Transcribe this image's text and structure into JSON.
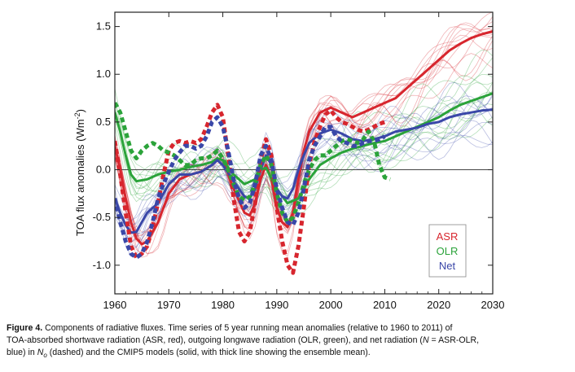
{
  "chart_data": {
    "type": "line",
    "title": "",
    "xlabel": "",
    "ylabel": "TOA flux anomalies (Wm",
    "ylabel_sup": "-2",
    "ylabel_close": ")",
    "xlim": [
      1960,
      2030
    ],
    "ylim": [
      -1.3,
      1.65
    ],
    "x_ticks": [
      1960,
      1970,
      1980,
      1990,
      2000,
      2010,
      2020,
      2030
    ],
    "x_tick_labels": [
      "1960",
      "1970",
      "1980",
      "1990",
      "2000",
      "2010",
      "2020",
      "2030"
    ],
    "y_ticks": [
      -1.0,
      -0.5,
      0.0,
      0.5,
      1.0,
      1.5
    ],
    "y_tick_labels": [
      "-1.0",
      "-0.5",
      "0.0",
      "0.5",
      "1.0",
      "1.5"
    ],
    "zero_line": true,
    "legend_position": "bottom-right",
    "legend": [
      {
        "label": "ASR",
        "color": "#d7262e"
      },
      {
        "label": "OLR",
        "color": "#2ba33a"
      },
      {
        "label": "Net",
        "color": "#3a47a8"
      }
    ],
    "series": [
      {
        "name": "ASR",
        "style": "solid",
        "color": "#d7262e",
        "x": [
          1960,
          1961,
          1962,
          1963,
          1964,
          1965,
          1966,
          1968,
          1970,
          1972,
          1974,
          1976,
          1978,
          1979,
          1980,
          1982,
          1984,
          1985,
          1986,
          1987,
          1988,
          1989,
          1990,
          1991,
          1992,
          1993,
          1994,
          1995,
          1996,
          1998,
          2000,
          2002,
          2004,
          2006,
          2008,
          2010,
          2012,
          2014,
          2016,
          2018,
          2020,
          2022,
          2024,
          2026,
          2028,
          2030
        ],
        "y": [
          0.25,
          0.0,
          -0.3,
          -0.55,
          -0.72,
          -0.78,
          -0.75,
          -0.55,
          -0.25,
          -0.1,
          -0.05,
          -0.02,
          0.05,
          0.12,
          0.1,
          -0.2,
          -0.45,
          -0.48,
          -0.35,
          -0.1,
          0.05,
          -0.1,
          -0.4,
          -0.55,
          -0.6,
          -0.45,
          -0.1,
          0.2,
          0.4,
          0.6,
          0.65,
          0.6,
          0.55,
          0.6,
          0.65,
          0.7,
          0.75,
          0.85,
          0.95,
          1.05,
          1.15,
          1.25,
          1.32,
          1.38,
          1.42,
          1.45
        ]
      },
      {
        "name": "OLR",
        "style": "solid",
        "color": "#2ba33a",
        "x": [
          1960,
          1961,
          1962,
          1963,
          1964,
          1966,
          1968,
          1970,
          1972,
          1974,
          1976,
          1978,
          1979,
          1980,
          1982,
          1984,
          1986,
          1987,
          1988,
          1990,
          1992,
          1994,
          1996,
          1998,
          2000,
          2002,
          2004,
          2006,
          2008,
          2010,
          2012,
          2014,
          2016,
          2018,
          2020,
          2022,
          2024,
          2026,
          2028,
          2030
        ],
        "y": [
          0.6,
          0.4,
          0.15,
          -0.05,
          -0.12,
          -0.1,
          -0.05,
          -0.02,
          0.0,
          0.03,
          0.05,
          0.08,
          0.12,
          0.1,
          -0.05,
          -0.15,
          -0.1,
          0.0,
          0.02,
          -0.2,
          -0.35,
          -0.3,
          -0.1,
          0.05,
          0.12,
          0.18,
          0.22,
          0.25,
          0.28,
          0.3,
          0.35,
          0.4,
          0.45,
          0.5,
          0.55,
          0.62,
          0.68,
          0.72,
          0.76,
          0.8
        ]
      },
      {
        "name": "Net",
        "style": "solid",
        "color": "#3a47a8",
        "x": [
          1960,
          1961,
          1962,
          1963,
          1964,
          1965,
          1966,
          1968,
          1970,
          1972,
          1974,
          1976,
          1978,
          1979,
          1980,
          1982,
          1984,
          1985,
          1986,
          1987,
          1988,
          1989,
          1990,
          1991,
          1992,
          1993,
          1994,
          1995,
          1996,
          1998,
          2000,
          2002,
          2004,
          2006,
          2008,
          2010,
          2012,
          2014,
          2016,
          2018,
          2020,
          2022,
          2024,
          2026,
          2028,
          2030
        ],
        "y": [
          -0.3,
          -0.45,
          -0.58,
          -0.66,
          -0.65,
          -0.55,
          -0.45,
          -0.35,
          -0.15,
          -0.05,
          -0.05,
          -0.02,
          0.05,
          0.1,
          0.05,
          -0.12,
          -0.28,
          -0.3,
          -0.2,
          0.0,
          0.15,
          0.05,
          -0.2,
          -0.28,
          -0.3,
          -0.2,
          0.0,
          0.15,
          0.28,
          0.38,
          0.42,
          0.38,
          0.32,
          0.3,
          0.32,
          0.35,
          0.4,
          0.42,
          0.44,
          0.48,
          0.5,
          0.55,
          0.58,
          0.6,
          0.62,
          0.63
        ]
      },
      {
        "name": "ASR",
        "style": "dashed",
        "color": "#d7262e",
        "x": [
          1960,
          1961,
          1962,
          1963,
          1964,
          1965,
          1966,
          1967,
          1968,
          1969,
          1970,
          1971,
          1972,
          1973,
          1974,
          1975,
          1976,
          1977,
          1978,
          1979,
          1980,
          1981,
          1982,
          1983,
          1984,
          1985,
          1986,
          1987,
          1988,
          1989,
          1990,
          1991,
          1992,
          1993,
          1994,
          1995,
          1996,
          1997,
          1998,
          1999,
          2000,
          2001,
          2002,
          2003,
          2004,
          2005,
          2006,
          2007,
          2008,
          2009,
          2010
        ],
        "y": [
          0.3,
          -0.05,
          -0.45,
          -0.8,
          -0.92,
          -0.88,
          -0.8,
          -0.6,
          -0.35,
          -0.05,
          0.2,
          0.28,
          0.3,
          0.28,
          0.3,
          0.28,
          0.32,
          0.45,
          0.6,
          0.68,
          0.55,
          0.15,
          -0.3,
          -0.65,
          -0.75,
          -0.65,
          -0.35,
          0.1,
          0.32,
          0.15,
          -0.4,
          -0.75,
          -1.0,
          -1.08,
          -0.8,
          -0.4,
          0.05,
          0.3,
          0.45,
          0.58,
          0.62,
          0.55,
          0.5,
          0.48,
          0.45,
          0.42,
          0.4,
          0.42,
          0.45,
          0.48,
          0.5
        ]
      },
      {
        "name": "OLR",
        "style": "dashed",
        "color": "#2ba33a",
        "x": [
          1960,
          1961,
          1962,
          1963,
          1964,
          1965,
          1966,
          1967,
          1968,
          1969,
          1970,
          1971,
          1972,
          1973,
          1974,
          1975,
          1976,
          1977,
          1978,
          1979,
          1980,
          1981,
          1982,
          1983,
          1984,
          1985,
          1986,
          1987,
          1988,
          1989,
          1990,
          1991,
          1992,
          1993,
          1994,
          1995,
          1996,
          1997,
          1998,
          1999,
          2000,
          2001,
          2002,
          2003,
          2004,
          2005,
          2006,
          2007,
          2008,
          2009,
          2010,
          2011
        ],
        "y": [
          0.7,
          0.6,
          0.4,
          0.2,
          0.12,
          0.2,
          0.25,
          0.28,
          0.25,
          0.2,
          0.18,
          0.15,
          0.1,
          0.05,
          0.05,
          0.1,
          0.12,
          0.12,
          0.15,
          0.2,
          0.12,
          0.0,
          -0.15,
          -0.28,
          -0.32,
          -0.28,
          -0.15,
          0.05,
          0.15,
          0.05,
          -0.25,
          -0.45,
          -0.55,
          -0.5,
          -0.35,
          -0.15,
          0.0,
          0.1,
          0.15,
          0.15,
          0.2,
          0.25,
          0.3,
          0.32,
          0.3,
          0.28,
          0.32,
          0.4,
          0.3,
          0.05,
          -0.08,
          -0.1
        ]
      },
      {
        "name": "Net",
        "style": "dashed",
        "color": "#3a47a8",
        "x": [
          1960,
          1961,
          1962,
          1963,
          1964,
          1965,
          1966,
          1967,
          1968,
          1969,
          1970,
          1971,
          1972,
          1973,
          1974,
          1975,
          1976,
          1977,
          1978,
          1979,
          1980,
          1981,
          1982,
          1983,
          1984,
          1985,
          1986,
          1987,
          1988,
          1989,
          1990,
          1991,
          1992,
          1993,
          1994,
          1995,
          1996,
          1997,
          1998,
          1999,
          2000,
          2001,
          2002,
          2003,
          2004,
          2005,
          2006,
          2007,
          2008,
          2009,
          2010
        ],
        "y": [
          -0.3,
          -0.55,
          -0.75,
          -0.88,
          -0.92,
          -0.88,
          -0.75,
          -0.55,
          -0.3,
          -0.15,
          -0.02,
          0.1,
          0.18,
          0.25,
          0.25,
          0.22,
          0.25,
          0.35,
          0.5,
          0.55,
          0.45,
          0.2,
          -0.1,
          -0.3,
          -0.4,
          -0.35,
          -0.15,
          0.15,
          0.25,
          0.1,
          -0.2,
          -0.4,
          -0.55,
          -0.58,
          -0.45,
          -0.2,
          0.1,
          0.25,
          0.35,
          0.45,
          0.45,
          0.35,
          0.3,
          0.28,
          0.25,
          0.25,
          0.28,
          0.3,
          0.3,
          0.32,
          0.35
        ]
      }
    ]
  },
  "caption": {
    "label": "Figure 4.",
    "line1": " Components of radiative fluxes. Time series of 5 year running mean anomalies (relative to 1960 to 2011) of",
    "line2": "TOA-absorbed shortwave radiation (ASR, red), outgoing longwave radiation (OLR, green), and net radiation (",
    "line2_var": "N",
    "line2_end": " = ASR-OLR,",
    "line3_start": "blue) in ",
    "line3_var": "N",
    "line3_sub": "o",
    "line3_end": " (dashed) and the CMIP5 models (solid, with thick line showing the ensemble mean)."
  }
}
